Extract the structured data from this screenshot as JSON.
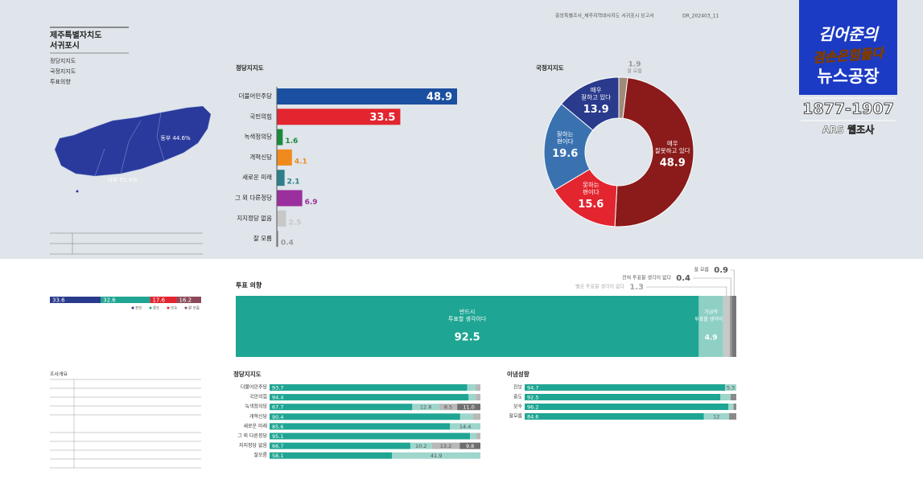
{
  "header": {
    "report": "중앙특별조사_제주지역대사지도 서귀포시 보고서",
    "code": "DR_202403_11"
  },
  "region": {
    "title": [
      "제주특별자치도",
      "서귀포시"
    ],
    "contents": [
      "정당지지도",
      "국정지지도",
      "투표의향"
    ]
  },
  "map": {
    "labels": [
      "동부 44.6%",
      "서부 55.4%"
    ]
  },
  "logo": {
    "line1": "김어준의",
    "line2": "겸손은힘들다",
    "line3": "뉴스공장",
    "phone": "1877-1907",
    "method": "ARS 웹조사"
  },
  "survey_outline": {
    "title": "조사개요"
  },
  "chart_data": [
    {
      "type": "bar",
      "title": "정당지지도",
      "categories": [
        "더불어민주당",
        "국민의힘",
        "녹색정의당",
        "개혁신당",
        "새로운 미래",
        "그 외 다른정당",
        "지지정당 없음",
        "잘 모름"
      ],
      "values": [
        48.9,
        33.5,
        1.6,
        4.1,
        2.1,
        6.9,
        2.5,
        0.4
      ],
      "colors": [
        "#1b4fa0",
        "#e2252f",
        "#1a8a3a",
        "#f08a1e",
        "#2e7f8c",
        "#9b2f9e",
        "#c8c8c8",
        "#9a9a9a"
      ]
    },
    {
      "type": "pie",
      "title": "국정지지도",
      "categories": [
        "잘 모름",
        "매우 잘못하고 있다",
        "못하는 편이다",
        "잘하는 편이다",
        "매우 잘하고 있다"
      ],
      "values": [
        1.9,
        48.9,
        15.6,
        19.6,
        13.9
      ],
      "colors": [
        "#a08a7a",
        "#8b1a1a",
        "#e2252f",
        "#3a72b0",
        "#2a3a8c"
      ]
    },
    {
      "type": "stacked_bar",
      "series": [
        {
          "name": "진보",
          "color": "#2a3a8c",
          "values": [
            33.6
          ]
        },
        {
          "name": "중도",
          "color": "#1fa593",
          "values": [
            32.6
          ]
        },
        {
          "name": "보수",
          "color": "#e2252f",
          "values": [
            17.6
          ]
        },
        {
          "name": "잘 모름",
          "color": "#8b4a5a",
          "values": [
            16.2
          ]
        }
      ]
    },
    {
      "type": "stacked_bar",
      "title": "투표 의향",
      "series": [
        {
          "name": "반드시 투표할 생각이다",
          "color": "#1fa593",
          "values": [
            92.5
          ]
        },
        {
          "name": "가급적 투표할 생각이다",
          "color": "#8fd0c4",
          "values": [
            4.9
          ]
        },
        {
          "name": "별로 투표할 생각이 없다",
          "color": "#c8c8c8",
          "values": [
            1.3
          ]
        },
        {
          "name": "전혀 투표할 생각이 없다",
          "color": "#9a9a9a",
          "values": [
            0.4
          ]
        },
        {
          "name": "잘 모름",
          "color": "#777777",
          "values": [
            0.9
          ]
        }
      ]
    },
    {
      "type": "stacked_bar",
      "title": "정당지지도",
      "categories": [
        "더불어민주당",
        "국민의힘",
        "녹색정의당",
        "개혁신당",
        "새로운 미래",
        "그 외 다른정당",
        "지지정당 없음",
        "잘모름"
      ],
      "series": [
        {
          "color": "#1fa593",
          "values": [
            93.7,
            94.4,
            67.7,
            90.4,
            85.6,
            95.1,
            66.7,
            58.1
          ]
        },
        {
          "color": "#9ed6cc",
          "values": [
            4.0,
            3.5,
            12.8,
            6.0,
            14.4,
            3.0,
            10.2,
            41.9
          ]
        },
        {
          "color": "#b8b8b8",
          "values": [
            2.3,
            2.1,
            8.5,
            3.6,
            null,
            1.9,
            13.2,
            null
          ]
        },
        {
          "color": "#6e6e6e",
          "values": [
            null,
            null,
            11.0,
            null,
            null,
            null,
            9.8,
            null
          ],
          "value_labels": [
            null,
            null,
            "11.0",
            null,
            null,
            null,
            "9.8",
            null
          ]
        }
      ]
    },
    {
      "type": "stacked_bar",
      "title": "이념성향",
      "categories": [
        "진보",
        "중도",
        "보수",
        "잘모름"
      ],
      "series": [
        {
          "color": "#1fa593",
          "values": [
            94.7,
            92.5,
            96.2,
            84.6
          ]
        },
        {
          "color": "#9ed6cc",
          "values": [
            5.3,
            4.8,
            2.5,
            12.0
          ]
        },
        {
          "color": "#8a8a8a",
          "values": [
            null,
            2.7,
            1.3,
            3.4
          ]
        }
      ]
    }
  ]
}
